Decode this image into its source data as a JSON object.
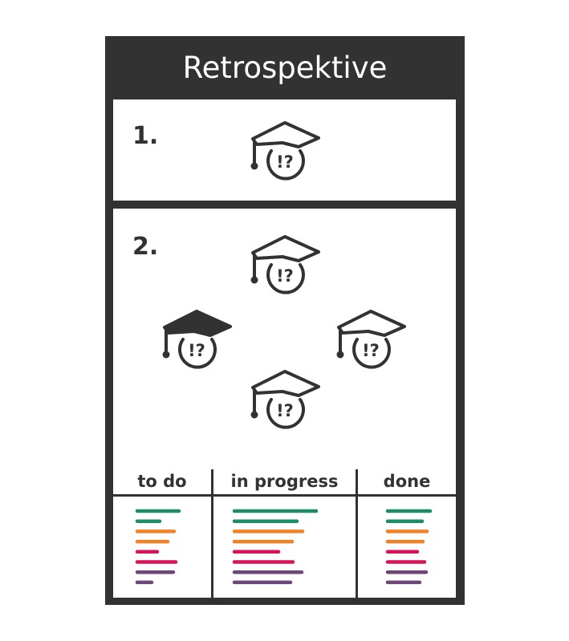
{
  "title": "Retrospektive",
  "sections": [
    {
      "number": "1."
    },
    {
      "number": "2."
    }
  ],
  "icon": {
    "name": "graduation-cap-question-icon",
    "text": "!?"
  },
  "board": {
    "columns": [
      "to do",
      "in progress",
      "done"
    ]
  },
  "colors": {
    "frame": "#323232",
    "green": "#1e8c64",
    "orange": "#f08228",
    "pink": "#d7145a",
    "purple": "#6e4678"
  }
}
